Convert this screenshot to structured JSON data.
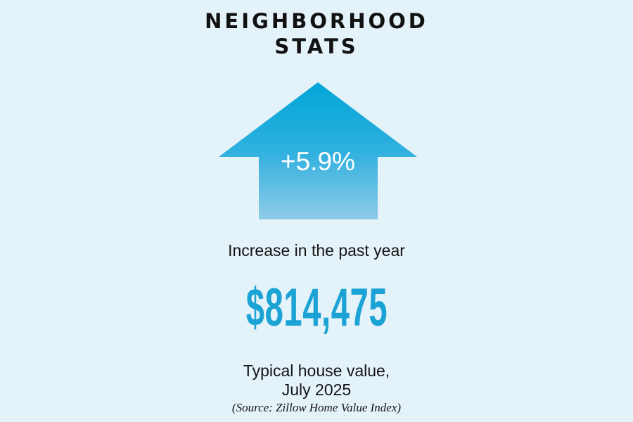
{
  "heading": {
    "line1": "NEIGHBORHOOD",
    "line2": "STATS"
  },
  "change": {
    "value": "+5.9%",
    "direction": "up",
    "icon": "up-arrow-icon",
    "colors": {
      "arrow_top": "#00a6d6",
      "arrow_bottom": "#8fcbe8"
    }
  },
  "change_caption": "Increase in the past year",
  "house_value": {
    "value": "$814,475",
    "color": "#1aa3d4"
  },
  "value_caption": {
    "line1": "Typical house value,",
    "line2": "July 2025"
  },
  "source": "(Source: Zillow Home Value Index)",
  "colors": {
    "background": "#e4f2f9",
    "text": "#151515"
  }
}
